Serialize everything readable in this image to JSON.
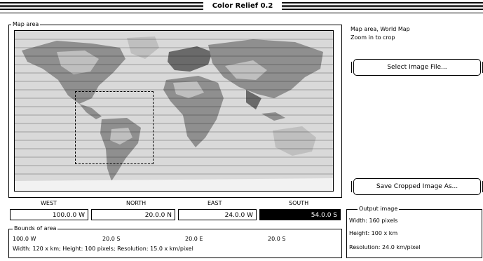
{
  "window": {
    "title": "Color Relief 0.2"
  },
  "map_group": {
    "label": "Map area"
  },
  "side_text": {
    "line1": "Map area, World Map",
    "line2": "Zoom in to crop"
  },
  "buttons": {
    "select_image": "Select Image File...",
    "save_cropped": "Save Cropped Image As..."
  },
  "coords": {
    "labels": [
      "WEST",
      "NORTH",
      "EAST",
      "SOUTH"
    ],
    "values": [
      "100.0.0 W",
      "20.0.0 N",
      "24.0.0 W",
      "54.0.0 S"
    ]
  },
  "bounds_group": {
    "label": "Bounds of area",
    "corners": [
      "100.0 W",
      "20.0 S",
      "20.0 E",
      "20.0 S"
    ],
    "summary": "Width: 120 x km; Height: 100 pixels; Resolution: 15.0 x km/pixel"
  },
  "output_group": {
    "label": "Output image",
    "width": "Width: 160 pixels",
    "height": "Height: 100 x km",
    "resolution": "Resolution: 24.0 km/pixel"
  },
  "colors": {
    "ocean": "#d9d9d9",
    "land_light": "#bfbfbf",
    "land_mid": "#8f8f8f",
    "land_dark": "#6a6a6a"
  }
}
